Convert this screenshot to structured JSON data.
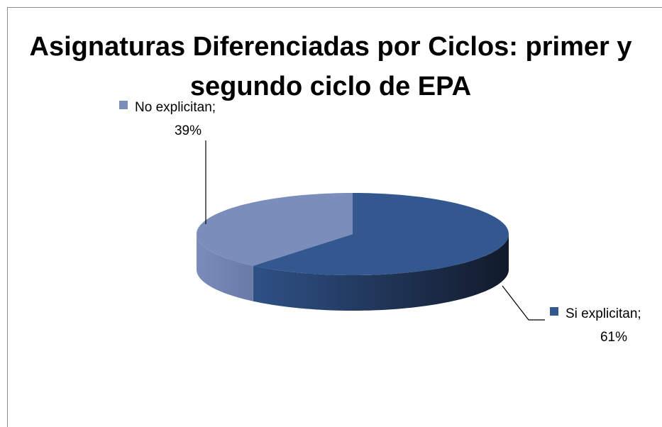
{
  "chart_data": {
    "type": "pie3d",
    "title": "Asignaturas Diferenciadas por Ciclos: primer y segundo ciclo de EPA",
    "categories": [
      "Si explicitan",
      "No explicitan"
    ],
    "values": [
      61,
      39
    ],
    "value_labels": [
      "61%",
      "39%"
    ],
    "label_separator": ";",
    "colors": [
      "#33578f",
      "#7b8dbb"
    ]
  }
}
